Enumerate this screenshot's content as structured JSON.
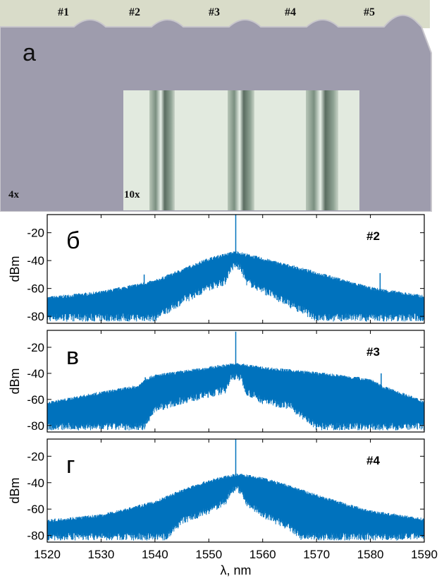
{
  "micrograph": {
    "panel_label": "а",
    "ports": [
      "#1",
      "#2",
      "#3",
      "#4",
      "#5"
    ],
    "magnification_outer": "4x",
    "magnification_inset": "10x",
    "colors": {
      "substrate": "#9e9cad",
      "substrate_edge": "#c8c6cc",
      "inset_bg": "#e2eadf",
      "channel_dark": "#5e6f63"
    }
  },
  "chart_data": [
    {
      "type": "line",
      "panel_label": "б",
      "annotation": "#2",
      "ylabel": "dBm",
      "xlim": [
        1520,
        1590
      ],
      "ylim": [
        -85,
        -7
      ],
      "yticks": [
        -20,
        -40,
        -60,
        -80
      ],
      "color": "#0072bd",
      "envelope": {
        "x": [
          1520,
          1530,
          1540,
          1545,
          1550,
          1553,
          1554,
          1555,
          1556,
          1557,
          1560,
          1565,
          1570,
          1580,
          1590
        ],
        "y": [
          -67,
          -63,
          -55,
          -47,
          -39,
          -36,
          -35,
          -34,
          -35,
          -36,
          -39,
          -44,
          -49,
          -60,
          -66
        ]
      },
      "floor": {
        "x": [
          1520,
          1530,
          1540,
          1545,
          1550,
          1553,
          1554,
          1555,
          1556,
          1557,
          1560,
          1565,
          1570,
          1580,
          1590
        ],
        "y": [
          -82,
          -82,
          -82,
          -70,
          -60,
          -56,
          -47,
          -44,
          -47,
          -56,
          -62,
          -72,
          -82,
          -82,
          -82
        ]
      },
      "peaks": [
        {
          "x": 1555.0,
          "y": -5
        },
        {
          "x": 1538.0,
          "y": -50
        },
        {
          "x": 1581.8,
          "y": -49
        }
      ]
    },
    {
      "type": "line",
      "panel_label": "в",
      "annotation": "#3",
      "ylabel": "dBm",
      "xlim": [
        1520,
        1590
      ],
      "ylim": [
        -85,
        -7
      ],
      "yticks": [
        -20,
        -40,
        -60,
        -80
      ],
      "color": "#0072bd",
      "envelope": {
        "x": [
          1520,
          1530,
          1537,
          1538,
          1540,
          1545,
          1550,
          1553,
          1555,
          1557,
          1560,
          1565,
          1570,
          1580,
          1582,
          1590
        ],
        "y": [
          -63,
          -55,
          -50,
          -45,
          -42,
          -39,
          -36,
          -34,
          -33,
          -34,
          -36,
          -38,
          -40,
          -45,
          -50,
          -62
        ]
      },
      "floor": {
        "x": [
          1520,
          1530,
          1538,
          1540,
          1545,
          1550,
          1553,
          1554,
          1555,
          1556,
          1557,
          1560,
          1565,
          1570,
          1580,
          1590
        ],
        "y": [
          -82,
          -82,
          -82,
          -68,
          -62,
          -57,
          -54,
          -45,
          -43,
          -45,
          -55,
          -62,
          -66,
          -82,
          -82,
          -82
        ]
      },
      "peaks": [
        {
          "x": 1555.0,
          "y": -8
        },
        {
          "x": 1538.2,
          "y": -43
        },
        {
          "x": 1582.0,
          "y": -40
        }
      ]
    },
    {
      "type": "line",
      "panel_label": "г",
      "annotation": "#4",
      "ylabel": "dBm",
      "xlabel": "λ, nm",
      "xlim": [
        1520,
        1590
      ],
      "ylim": [
        -85,
        -7
      ],
      "yticks": [
        -20,
        -40,
        -60,
        -80
      ],
      "xticks": [
        1520,
        1530,
        1540,
        1550,
        1560,
        1570,
        1580,
        1590
      ],
      "color": "#0072bd",
      "envelope": {
        "x": [
          1520,
          1530,
          1540,
          1545,
          1550,
          1553,
          1555,
          1557,
          1560,
          1565,
          1570,
          1580,
          1590
        ],
        "y": [
          -69,
          -65,
          -55,
          -46,
          -39,
          -36,
          -34,
          -35,
          -37,
          -43,
          -50,
          -62,
          -68
        ]
      },
      "floor": {
        "x": [
          1520,
          1530,
          1542,
          1545,
          1550,
          1553,
          1554,
          1555,
          1556,
          1557,
          1560,
          1565,
          1567,
          1580,
          1590
        ],
        "y": [
          -82,
          -82,
          -82,
          -70,
          -62,
          -56,
          -48,
          -45,
          -48,
          -56,
          -65,
          -75,
          -82,
          -82,
          -82
        ]
      },
      "peaks": [
        {
          "x": 1555.0,
          "y": -6
        }
      ]
    }
  ]
}
